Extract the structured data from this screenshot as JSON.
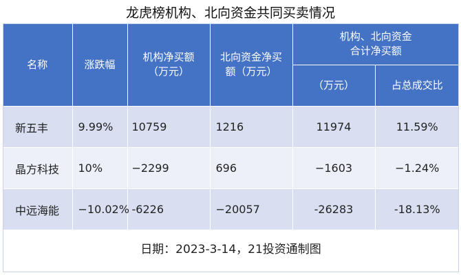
{
  "title": "龙虎榜机构、北向资金共同买卖情况",
  "headers": {
    "name": "名称",
    "change": "涨跌幅",
    "inst_line1": "机构净买额",
    "inst_line2": "（万元）",
    "nb_line1": "北向资金净买",
    "nb_line2": "额（万元）",
    "combined_line1": "机构、北向资金",
    "combined_line2": "合计净买额",
    "total_unit": "（万元）",
    "share": "占总成交比"
  },
  "rows": [
    {
      "name": "新五丰",
      "change": "9.99%",
      "inst": "10759",
      "northbound": "1216",
      "total": "11974",
      "share": "11.59%"
    },
    {
      "name": "晶方科技",
      "change": "10%",
      "inst": "−2299",
      "northbound": "696",
      "total": "−1603",
      "share": "−1.24%"
    },
    {
      "name": "中远海能",
      "change": "−10.02%",
      "inst": "-6226",
      "northbound": "−20057",
      "total": "-26283",
      "share": "-18.13%"
    }
  ],
  "footer": "日期：2023-3-14，21投资通制图",
  "colors": {
    "header_bg": "#4472c4",
    "row_dark": "#d9dff1",
    "row_light": "#edf0f8"
  }
}
